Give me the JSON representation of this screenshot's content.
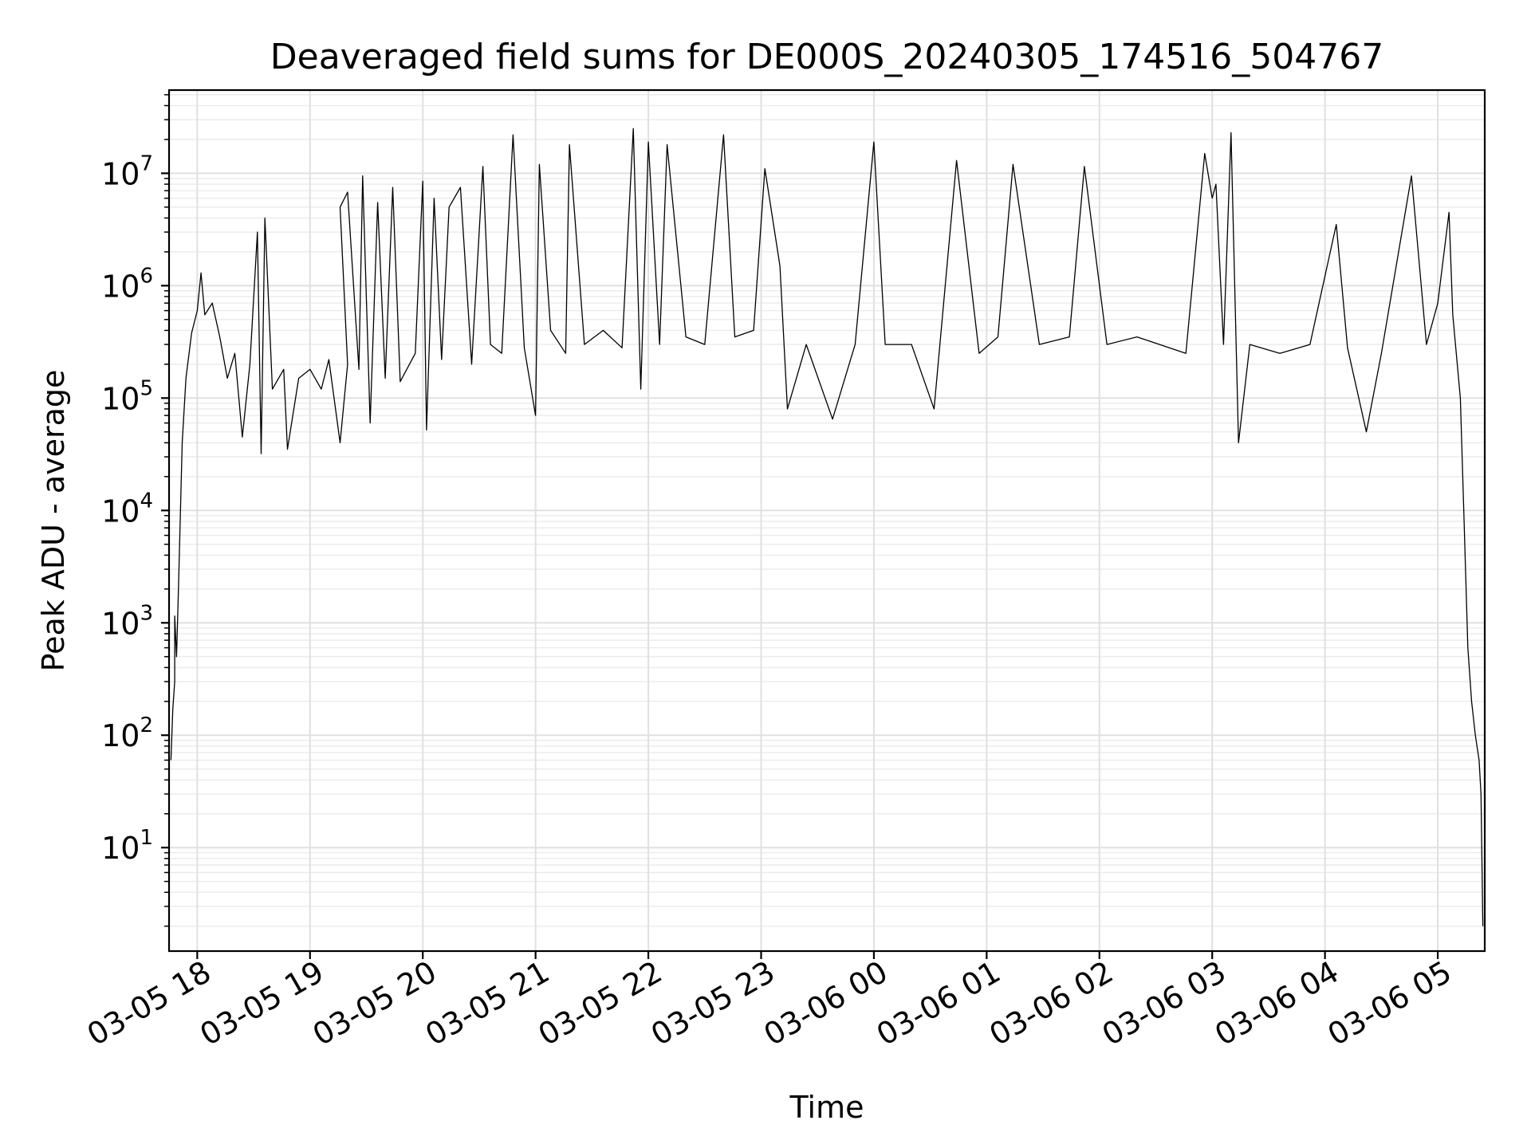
{
  "chart_data": {
    "type": "line",
    "title": "Deaveraged field sums for DE000S_20240305_174516_504767",
    "xlabel": "Time",
    "ylabel": "Peak ADU - average",
    "yscale": "log",
    "ylim": [
      1.2,
      55000000
    ],
    "xlim": [
      "2024-03-05 17:45",
      "2024-03-06 05:25"
    ],
    "grid": true,
    "x_ticks": [
      {
        "t": "2024-03-05 18:00",
        "label": "03-05 18"
      },
      {
        "t": "2024-03-05 19:00",
        "label": "03-05 19"
      },
      {
        "t": "2024-03-05 20:00",
        "label": "03-05 20"
      },
      {
        "t": "2024-03-05 21:00",
        "label": "03-05 21"
      },
      {
        "t": "2024-03-05 22:00",
        "label": "03-05 22"
      },
      {
        "t": "2024-03-05 23:00",
        "label": "03-05 23"
      },
      {
        "t": "2024-03-06 00:00",
        "label": "03-06 00"
      },
      {
        "t": "2024-03-06 01:00",
        "label": "03-06 01"
      },
      {
        "t": "2024-03-06 02:00",
        "label": "03-06 02"
      },
      {
        "t": "2024-03-06 03:00",
        "label": "03-06 03"
      },
      {
        "t": "2024-03-06 04:00",
        "label": "03-06 04"
      },
      {
        "t": "2024-03-06 05:00",
        "label": "03-06 05"
      }
    ],
    "y_ticks": [
      {
        "value": 10,
        "base": "10",
        "exp": "1"
      },
      {
        "value": 100,
        "base": "10",
        "exp": "2"
      },
      {
        "value": 1000,
        "base": "10",
        "exp": "3"
      },
      {
        "value": 10000,
        "base": "10",
        "exp": "4"
      },
      {
        "value": 100000,
        "base": "10",
        "exp": "5"
      },
      {
        "value": 1000000,
        "base": "10",
        "exp": "6"
      },
      {
        "value": 10000000,
        "base": "10",
        "exp": "7"
      }
    ],
    "series": [
      {
        "color": "#000000",
        "points": [
          [
            "2024-03-05 17:46",
            60
          ],
          [
            "2024-03-05 17:47",
            170
          ],
          [
            "2024-03-05 17:48",
            300
          ],
          [
            "2024-03-05 17:48",
            1150
          ],
          [
            "2024-03-05 17:49",
            500
          ],
          [
            "2024-03-05 17:50",
            2000
          ],
          [
            "2024-03-05 17:52",
            40000
          ],
          [
            "2024-03-05 17:54",
            150000
          ],
          [
            "2024-03-05 17:57",
            380000
          ],
          [
            "2024-03-05 18:00",
            600000
          ],
          [
            "2024-03-05 18:02",
            1300000
          ],
          [
            "2024-03-05 18:04",
            550000
          ],
          [
            "2024-03-05 18:08",
            700000
          ],
          [
            "2024-03-05 18:12",
            350000
          ],
          [
            "2024-03-05 18:16",
            150000
          ],
          [
            "2024-03-05 18:20",
            250000
          ],
          [
            "2024-03-05 18:24",
            45000
          ],
          [
            "2024-03-05 18:28",
            200000
          ],
          [
            "2024-03-05 18:32",
            3000000
          ],
          [
            "2024-03-05 18:34",
            32000
          ],
          [
            "2024-03-05 18:36",
            4000000
          ],
          [
            "2024-03-05 18:40",
            120000
          ],
          [
            "2024-03-05 18:46",
            180000
          ],
          [
            "2024-03-05 18:48",
            35000
          ],
          [
            "2024-03-05 18:54",
            150000
          ],
          [
            "2024-03-05 19:00",
            180000
          ],
          [
            "2024-03-05 19:06",
            120000
          ],
          [
            "2024-03-05 19:10",
            220000
          ],
          [
            "2024-03-05 19:16",
            40000
          ],
          [
            "2024-03-05 19:20",
            200000
          ],
          [
            "2024-03-05 19:16",
            5000000
          ],
          [
            "2024-03-05 19:20",
            6800000
          ],
          [
            "2024-03-05 19:26",
            180000
          ],
          [
            "2024-03-05 19:28",
            9500000
          ],
          [
            "2024-03-05 19:32",
            60000
          ],
          [
            "2024-03-05 19:36",
            5500000
          ],
          [
            "2024-03-05 19:40",
            150000
          ],
          [
            "2024-03-05 19:44",
            7500000
          ],
          [
            "2024-03-05 19:48",
            140000
          ],
          [
            "2024-03-05 19:56",
            250000
          ],
          [
            "2024-03-05 20:00",
            8500000
          ],
          [
            "2024-03-05 20:02",
            52000
          ],
          [
            "2024-03-05 20:06",
            6000000
          ],
          [
            "2024-03-05 20:10",
            220000
          ],
          [
            "2024-03-05 20:14",
            5000000
          ],
          [
            "2024-03-05 20:20",
            7500000
          ],
          [
            "2024-03-05 20:26",
            200000
          ],
          [
            "2024-03-05 20:32",
            11500000
          ],
          [
            "2024-03-05 20:36",
            300000
          ],
          [
            "2024-03-05 20:42",
            250000
          ],
          [
            "2024-03-05 20:48",
            22000000
          ],
          [
            "2024-03-05 20:54",
            280000
          ],
          [
            "2024-03-05 21:00",
            70000
          ],
          [
            "2024-03-05 21:02",
            12000000
          ],
          [
            "2024-03-05 21:08",
            400000
          ],
          [
            "2024-03-05 21:16",
            250000
          ],
          [
            "2024-03-05 21:18",
            18000000
          ],
          [
            "2024-03-05 21:26",
            300000
          ],
          [
            "2024-03-05 21:36",
            400000
          ],
          [
            "2024-03-05 21:46",
            280000
          ],
          [
            "2024-03-05 21:52",
            25000000
          ],
          [
            "2024-03-05 21:56",
            120000
          ],
          [
            "2024-03-05 22:00",
            19000000
          ],
          [
            "2024-03-05 22:06",
            300000
          ],
          [
            "2024-03-05 22:10",
            18000000
          ],
          [
            "2024-03-05 22:20",
            350000
          ],
          [
            "2024-03-05 22:30",
            300000
          ],
          [
            "2024-03-05 22:40",
            22000000
          ],
          [
            "2024-03-05 22:46",
            350000
          ],
          [
            "2024-03-05 22:56",
            400000
          ],
          [
            "2024-03-05 23:02",
            11000000
          ],
          [
            "2024-03-05 23:10",
            1500000
          ],
          [
            "2024-03-05 23:14",
            80000
          ],
          [
            "2024-03-05 23:24",
            300000
          ],
          [
            "2024-03-05 23:38",
            65000
          ],
          [
            "2024-03-05 23:50",
            300000
          ],
          [
            "2024-03-06 00:00",
            19000000
          ],
          [
            "2024-03-06 00:06",
            300000
          ],
          [
            "2024-03-06 00:20",
            300000
          ],
          [
            "2024-03-06 00:32",
            80000
          ],
          [
            "2024-03-06 00:44",
            13000000
          ],
          [
            "2024-03-06 00:56",
            250000
          ],
          [
            "2024-03-06 01:06",
            350000
          ],
          [
            "2024-03-06 01:14",
            12000000
          ],
          [
            "2024-03-06 01:28",
            300000
          ],
          [
            "2024-03-06 01:44",
            350000
          ],
          [
            "2024-03-06 01:52",
            11500000
          ],
          [
            "2024-03-06 02:04",
            300000
          ],
          [
            "2024-03-06 02:20",
            350000
          ],
          [
            "2024-03-06 02:32",
            300000
          ],
          [
            "2024-03-06 02:46",
            250000
          ],
          [
            "2024-03-06 02:56",
            15000000
          ],
          [
            "2024-03-06 03:00",
            6000000
          ],
          [
            "2024-03-06 03:02",
            8000000
          ],
          [
            "2024-03-06 03:06",
            300000
          ],
          [
            "2024-03-06 03:10",
            23000000
          ],
          [
            "2024-03-06 03:14",
            40000
          ],
          [
            "2024-03-06 03:20",
            300000
          ],
          [
            "2024-03-06 03:36",
            250000
          ],
          [
            "2024-03-06 03:52",
            300000
          ],
          [
            "2024-03-06 04:06",
            3500000
          ],
          [
            "2024-03-06 04:12",
            280000
          ],
          [
            "2024-03-06 04:22",
            50000
          ],
          [
            "2024-03-06 04:30",
            250000
          ],
          [
            "2024-03-06 04:46",
            9500000
          ],
          [
            "2024-03-06 04:54",
            300000
          ],
          [
            "2024-03-06 05:00",
            700000
          ],
          [
            "2024-03-06 05:06",
            4500000
          ],
          [
            "2024-03-06 05:08",
            550000
          ],
          [
            "2024-03-06 05:12",
            100000
          ],
          [
            "2024-03-06 05:14",
            8000
          ],
          [
            "2024-03-06 05:16",
            600
          ],
          [
            "2024-03-06 05:18",
            200
          ],
          [
            "2024-03-06 05:20",
            100
          ],
          [
            "2024-03-06 05:22",
            60
          ],
          [
            "2024-03-06 05:23",
            30
          ],
          [
            "2024-03-06 05:24",
            2
          ]
        ]
      }
    ]
  }
}
